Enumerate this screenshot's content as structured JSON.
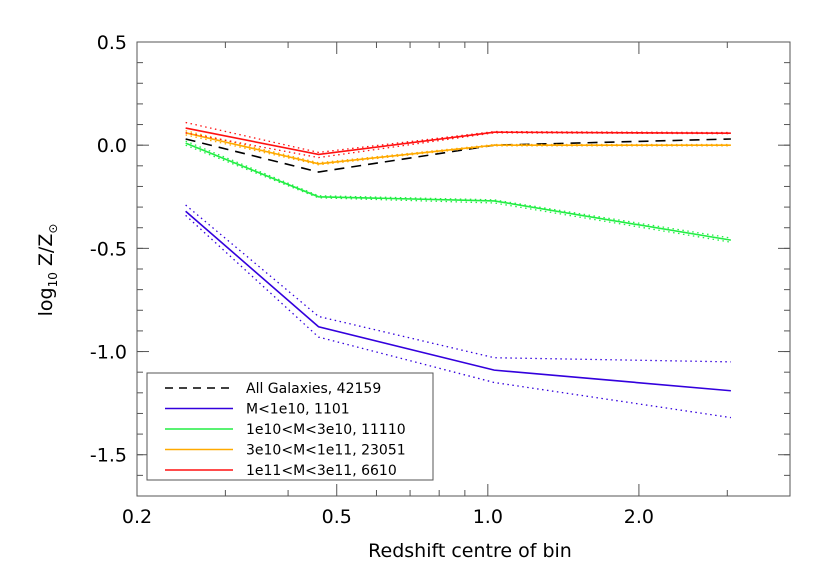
{
  "chart_data": {
    "type": "line",
    "title": "",
    "xlabel": "Redshift centre of bin",
    "ylabel_main": "log",
    "ylabel_sub": "10",
    "ylabel_rest": " Z/Z",
    "ylabel_sun": "⊙",
    "x_scale": "log",
    "xlim": [
      0.2,
      4.0
    ],
    "ylim": [
      -1.7,
      0.5
    ],
    "x_ticks": [
      0.2,
      0.5,
      1.0,
      2.0
    ],
    "x_tick_labels": [
      "0.2",
      "0.5",
      "1.0",
      "2.0"
    ],
    "x_minor_ticks": [
      0.3,
      0.4,
      0.6,
      0.7,
      0.8,
      0.9,
      3.0
    ],
    "y_ticks": [
      0.5,
      0.0,
      -0.5,
      -1.0,
      -1.5
    ],
    "y_tick_labels": [
      "0.5",
      "0.0",
      "-0.5",
      "-1.0",
      "-1.5"
    ],
    "grid": false,
    "legend_placement": "bottom-left",
    "x": [
      0.25,
      0.46,
      1.03,
      3.05
    ],
    "series": [
      {
        "name": "All Galaxies, 42159",
        "color": "#000000",
        "style": "dashed",
        "values": [
          0.03,
          -0.13,
          0.0,
          0.03
        ]
      },
      {
        "name": "M<1e10, 1101",
        "color": "#3300dd",
        "style": "solid",
        "values": [
          -0.32,
          -0.88,
          -1.09,
          -1.19
        ],
        "upper": [
          -0.29,
          -0.83,
          -1.03,
          -1.05
        ],
        "lower": [
          -0.34,
          -0.93,
          -1.15,
          -1.32
        ]
      },
      {
        "name": "1e10<M<3e10, 11110",
        "color": "#22ee44",
        "style": "solid",
        "values": [
          0.01,
          -0.25,
          -0.27,
          -0.46
        ],
        "upper": [
          0.02,
          -0.245,
          -0.265,
          -0.45
        ],
        "lower": [
          0.0,
          -0.255,
          -0.28,
          -0.47
        ]
      },
      {
        "name": "3e10<M<1e11, 23051",
        "color": "#ffaa00",
        "style": "solid",
        "values": [
          0.06,
          -0.09,
          0.0,
          0.0
        ],
        "upper": [
          0.07,
          -0.085,
          0.003,
          0.003
        ],
        "lower": [
          0.05,
          -0.095,
          -0.003,
          -0.003
        ]
      },
      {
        "name": "1e11<M<3e11, 6610",
        "color": "#ff1111",
        "style": "solid",
        "values": [
          0.083,
          -0.045,
          0.063,
          0.058
        ],
        "upper": [
          0.11,
          -0.035,
          0.066,
          0.061
        ],
        "lower": [
          0.06,
          -0.06,
          0.06,
          0.056
        ]
      }
    ]
  }
}
